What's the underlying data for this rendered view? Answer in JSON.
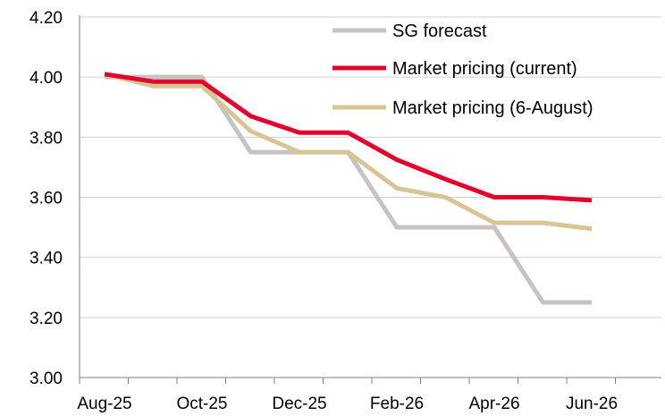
{
  "chart_data": {
    "type": "line",
    "title": "",
    "xlabel": "",
    "ylabel": "",
    "x": [
      "Aug-25",
      "Sep-25",
      "Oct-25",
      "Nov-25",
      "Dec-25",
      "Jan-26",
      "Feb-26",
      "Mar-26",
      "Apr-26",
      "May-26",
      "Jun-26"
    ],
    "x_tick_labels": [
      "Aug-25",
      "Oct-25",
      "Dec-25",
      "Feb-26",
      "Apr-26",
      "Jun-26"
    ],
    "ylim": [
      3.0,
      4.2
    ],
    "y_ticks": [
      3.0,
      3.2,
      3.4,
      3.6,
      3.8,
      4.0,
      4.2
    ],
    "y_tick_labels": [
      "3.00",
      "3.20",
      "3.40",
      "3.60",
      "3.80",
      "4.00",
      "4.20"
    ],
    "grid": "horizontal",
    "legend_position": "top-right",
    "series": [
      {
        "name": "SG forecast",
        "color": "#c8c3c3",
        "values": [
          4.0,
          4.0,
          4.0,
          3.75,
          3.75,
          3.75,
          3.5,
          3.5,
          3.5,
          3.25,
          3.25
        ]
      },
      {
        "name": "Market pricing (current)",
        "color": "#e4032d",
        "values": [
          4.01,
          3.985,
          3.985,
          3.87,
          3.815,
          3.815,
          3.725,
          3.66,
          3.6,
          3.6,
          3.59
        ]
      },
      {
        "name": "Market pricing (6-August)",
        "color": "#d8c596",
        "values": [
          4.01,
          3.97,
          3.97,
          3.82,
          3.75,
          3.75,
          3.63,
          3.6,
          3.515,
          3.515,
          3.495
        ]
      }
    ]
  },
  "colors": {
    "gridline": "#d0d0d0",
    "axis": "#808080"
  }
}
